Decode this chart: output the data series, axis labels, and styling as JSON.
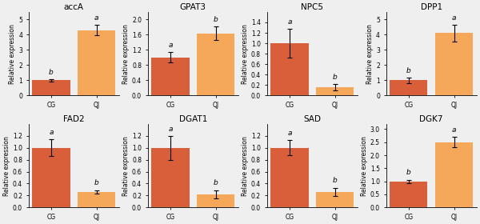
{
  "panels": [
    {
      "title": "accA",
      "bars": [
        {
          "label": "CG",
          "value": 1.0,
          "err": 0.08,
          "color": "#d95f3b",
          "sig": "b"
        },
        {
          "label": "QJ",
          "value": 4.3,
          "err": 0.35,
          "color": "#f5a85a",
          "sig": "a"
        }
      ],
      "ylim": [
        0,
        5.5
      ],
      "yticks": [
        0.0,
        1.0,
        2.0,
        3.0,
        4.0,
        5.0
      ]
    },
    {
      "title": "GPAT3",
      "bars": [
        {
          "label": "CG",
          "value": 1.0,
          "err": 0.14,
          "color": "#d95f3b",
          "sig": "a"
        },
        {
          "label": "QJ",
          "value": 1.63,
          "err": 0.18,
          "color": "#f5a85a",
          "sig": "b"
        }
      ],
      "ylim": [
        0,
        2.2
      ],
      "yticks": [
        0.0,
        0.4,
        0.8,
        1.2,
        1.6,
        2.0
      ]
    },
    {
      "title": "NPC5",
      "bars": [
        {
          "label": "CG",
          "value": 1.0,
          "err": 0.28,
          "color": "#d95f3b",
          "sig": "a"
        },
        {
          "label": "QJ",
          "value": 0.16,
          "err": 0.06,
          "color": "#f5a85a",
          "sig": "b"
        }
      ],
      "ylim": [
        0,
        1.6
      ],
      "yticks": [
        0.0,
        0.2,
        0.4,
        0.6,
        0.8,
        1.0,
        1.2,
        1.4
      ]
    },
    {
      "title": "DPP1",
      "bars": [
        {
          "label": "CG",
          "value": 1.0,
          "err": 0.18,
          "color": "#d95f3b",
          "sig": "b"
        },
        {
          "label": "QJ",
          "value": 4.1,
          "err": 0.55,
          "color": "#f5a85a",
          "sig": "a"
        }
      ],
      "ylim": [
        0,
        5.5
      ],
      "yticks": [
        0.0,
        1.0,
        2.0,
        3.0,
        4.0,
        5.0
      ]
    },
    {
      "title": "FAD2",
      "bars": [
        {
          "label": "CG",
          "value": 1.0,
          "err": 0.14,
          "color": "#d95f3b",
          "sig": "a"
        },
        {
          "label": "QJ",
          "value": 0.26,
          "err": 0.03,
          "color": "#f5a85a",
          "sig": "b"
        }
      ],
      "ylim": [
        0,
        1.4
      ],
      "yticks": [
        0.0,
        0.2,
        0.4,
        0.6,
        0.8,
        1.0,
        1.2
      ]
    },
    {
      "title": "DGAT1",
      "bars": [
        {
          "label": "CG",
          "value": 1.0,
          "err": 0.2,
          "color": "#d95f3b",
          "sig": "a"
        },
        {
          "label": "QJ",
          "value": 0.22,
          "err": 0.07,
          "color": "#f5a85a",
          "sig": "b"
        }
      ],
      "ylim": [
        0,
        1.4
      ],
      "yticks": [
        0.0,
        0.2,
        0.4,
        0.6,
        0.8,
        1.0,
        1.2
      ]
    },
    {
      "title": "SAD",
      "bars": [
        {
          "label": "CG",
          "value": 1.0,
          "err": 0.13,
          "color": "#d95f3b",
          "sig": "a"
        },
        {
          "label": "QJ",
          "value": 0.26,
          "err": 0.07,
          "color": "#f5a85a",
          "sig": "b"
        }
      ],
      "ylim": [
        0,
        1.4
      ],
      "yticks": [
        0.0,
        0.2,
        0.4,
        0.6,
        0.8,
        1.0,
        1.2
      ]
    },
    {
      "title": "DGK7",
      "bars": [
        {
          "label": "CG",
          "value": 1.0,
          "err": 0.06,
          "color": "#d95f3b",
          "sig": "b"
        },
        {
          "label": "QJ",
          "value": 2.5,
          "err": 0.2,
          "color": "#f5a85a",
          "sig": "a"
        }
      ],
      "ylim": [
        0,
        3.2
      ],
      "yticks": [
        0.0,
        0.5,
        1.0,
        1.5,
        2.0,
        2.5,
        3.0
      ]
    }
  ],
  "ylabel": "Relative expression",
  "bar_width": 0.5,
  "background_color": "#f0efef",
  "title_fontsize": 7.5,
  "label_fontsize": 5.5,
  "tick_fontsize": 5.5,
  "sig_fontsize": 6.5
}
